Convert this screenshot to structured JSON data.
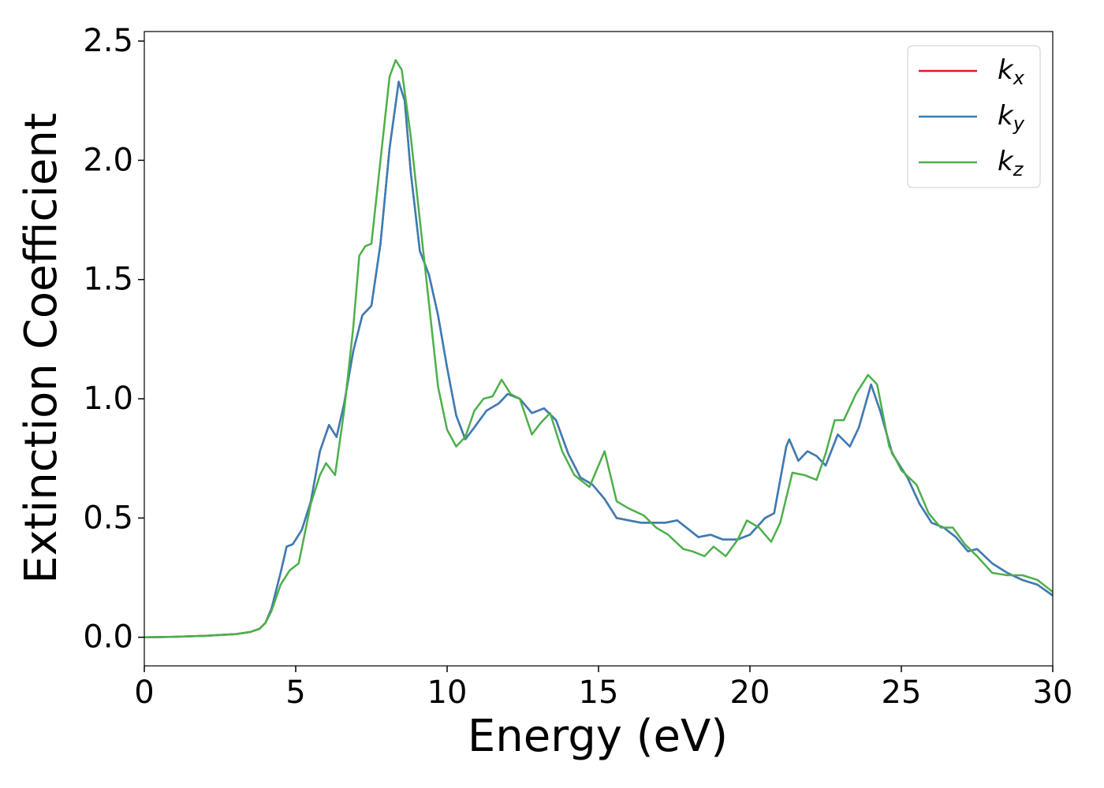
{
  "chart_data": {
    "type": "line",
    "xlabel": "Energy (eV)",
    "ylabel": "Extinction Coefficient",
    "xlim": [
      0,
      30
    ],
    "ylim": [
      -0.12,
      2.54
    ],
    "xticks": [
      0,
      5,
      10,
      15,
      20,
      25,
      30
    ],
    "yticks": [
      {
        "value": 0,
        "label": "0.0"
      },
      0.5,
      {
        "value": 1,
        "label": "1.0"
      },
      1.5,
      {
        "value": 2,
        "label": "2.0"
      },
      2.5
    ],
    "legend": "upper right",
    "series": [
      {
        "name": "kx",
        "color": "#e41a1c",
        "x": [
          0,
          1,
          2,
          3,
          3.5,
          3.8,
          4.0,
          4.2,
          4.5,
          4.7,
          4.9,
          5.2,
          5.5,
          5.8,
          6.1,
          6.35,
          6.6,
          6.9,
          7.2,
          7.5,
          7.8,
          8.1,
          8.4,
          8.6,
          8.8,
          9.1,
          9.4,
          9.7,
          10.0,
          10.3,
          10.6,
          10.9,
          11.3,
          11.7,
          12.0,
          12.4,
          12.8,
          13.2,
          13.6,
          14.0,
          14.4,
          14.8,
          15.2,
          15.6,
          16.0,
          16.4,
          16.8,
          17.2,
          17.6,
          17.9,
          18.3,
          18.7,
          19.1,
          19.6,
          20.0,
          20.5,
          20.8,
          21.2,
          21.3,
          21.6,
          21.9,
          22.2,
          22.5,
          22.9,
          23.3,
          23.6,
          24.0,
          24.3,
          24.7,
          25.2,
          25.6,
          26.0,
          26.4,
          26.8,
          27.2,
          27.5,
          28.0,
          28.5,
          29.0,
          29.5,
          30
        ],
        "values": [
          0,
          0.002,
          0.006,
          0.013,
          0.022,
          0.035,
          0.06,
          0.12,
          0.27,
          0.38,
          0.39,
          0.45,
          0.57,
          0.78,
          0.89,
          0.84,
          0.98,
          1.2,
          1.35,
          1.39,
          1.65,
          2.05,
          2.33,
          2.25,
          1.95,
          1.62,
          1.52,
          1.35,
          1.13,
          0.93,
          0.83,
          0.88,
          0.95,
          0.98,
          1.02,
          1.0,
          0.94,
          0.96,
          0.91,
          0.77,
          0.67,
          0.64,
          0.58,
          0.5,
          0.49,
          0.48,
          0.48,
          0.48,
          0.49,
          0.46,
          0.42,
          0.43,
          0.41,
          0.41,
          0.43,
          0.5,
          0.52,
          0.8,
          0.83,
          0.74,
          0.78,
          0.76,
          0.72,
          0.85,
          0.8,
          0.88,
          1.06,
          0.95,
          0.77,
          0.67,
          0.56,
          0.48,
          0.46,
          0.42,
          0.36,
          0.37,
          0.31,
          0.27,
          0.24,
          0.22,
          0.175
        ]
      },
      {
        "name": "ky",
        "color": "#377eb8",
        "x": [
          0,
          1,
          2,
          3,
          3.5,
          3.8,
          4.0,
          4.2,
          4.5,
          4.7,
          4.9,
          5.2,
          5.5,
          5.8,
          6.1,
          6.35,
          6.6,
          6.9,
          7.2,
          7.5,
          7.8,
          8.1,
          8.4,
          8.6,
          8.8,
          9.1,
          9.4,
          9.7,
          10.0,
          10.3,
          10.6,
          10.9,
          11.3,
          11.7,
          12.0,
          12.4,
          12.8,
          13.2,
          13.6,
          14.0,
          14.4,
          14.8,
          15.2,
          15.6,
          16.0,
          16.4,
          16.8,
          17.2,
          17.6,
          17.9,
          18.3,
          18.7,
          19.1,
          19.6,
          20.0,
          20.5,
          20.8,
          21.2,
          21.3,
          21.6,
          21.9,
          22.2,
          22.5,
          22.9,
          23.3,
          23.6,
          24.0,
          24.3,
          24.7,
          25.2,
          25.6,
          26.0,
          26.4,
          26.8,
          27.2,
          27.5,
          28.0,
          28.5,
          29.0,
          29.5,
          30
        ],
        "values": [
          0,
          0.002,
          0.006,
          0.013,
          0.022,
          0.035,
          0.06,
          0.12,
          0.27,
          0.38,
          0.39,
          0.45,
          0.57,
          0.78,
          0.89,
          0.84,
          0.98,
          1.2,
          1.35,
          1.39,
          1.65,
          2.05,
          2.33,
          2.25,
          1.95,
          1.62,
          1.52,
          1.35,
          1.13,
          0.93,
          0.83,
          0.88,
          0.95,
          0.98,
          1.02,
          1.0,
          0.94,
          0.96,
          0.91,
          0.77,
          0.67,
          0.64,
          0.58,
          0.5,
          0.49,
          0.48,
          0.48,
          0.48,
          0.49,
          0.46,
          0.42,
          0.43,
          0.41,
          0.41,
          0.43,
          0.5,
          0.52,
          0.8,
          0.83,
          0.74,
          0.78,
          0.76,
          0.72,
          0.85,
          0.8,
          0.88,
          1.06,
          0.95,
          0.77,
          0.67,
          0.56,
          0.48,
          0.46,
          0.42,
          0.36,
          0.37,
          0.31,
          0.27,
          0.24,
          0.22,
          0.175
        ]
      },
      {
        "name": "kz",
        "color": "#4daf4a",
        "x": [
          0,
          1,
          2,
          3,
          3.5,
          3.8,
          4.0,
          4.2,
          4.5,
          4.8,
          5.1,
          5.5,
          5.8,
          6.0,
          6.3,
          6.6,
          6.9,
          7.1,
          7.3,
          7.5,
          7.8,
          8.1,
          8.3,
          8.5,
          8.8,
          9.1,
          9.4,
          9.7,
          10.0,
          10.3,
          10.6,
          10.9,
          11.2,
          11.5,
          11.8,
          12.1,
          12.4,
          12.8,
          13.1,
          13.4,
          13.8,
          14.2,
          14.7,
          15.2,
          15.6,
          16.0,
          16.5,
          16.9,
          17.3,
          17.8,
          18.1,
          18.5,
          18.8,
          19.2,
          19.6,
          19.9,
          20.3,
          20.7,
          21.0,
          21.4,
          21.8,
          22.2,
          22.5,
          22.8,
          23.1,
          23.5,
          23.9,
          24.2,
          24.6,
          25.0,
          25.5,
          25.9,
          26.3,
          26.7,
          27.1,
          27.5,
          28.0,
          28.5,
          29.0,
          29.5,
          30
        ],
        "values": [
          0,
          0.002,
          0.006,
          0.013,
          0.022,
          0.035,
          0.06,
          0.11,
          0.22,
          0.28,
          0.31,
          0.56,
          0.68,
          0.73,
          0.68,
          0.95,
          1.3,
          1.6,
          1.64,
          1.65,
          2.0,
          2.35,
          2.42,
          2.38,
          2.1,
          1.75,
          1.4,
          1.05,
          0.87,
          0.8,
          0.84,
          0.95,
          1.0,
          1.01,
          1.08,
          1.02,
          1.0,
          0.85,
          0.9,
          0.94,
          0.78,
          0.68,
          0.63,
          0.78,
          0.57,
          0.54,
          0.51,
          0.46,
          0.43,
          0.37,
          0.36,
          0.34,
          0.38,
          0.34,
          0.41,
          0.49,
          0.46,
          0.4,
          0.48,
          0.69,
          0.68,
          0.66,
          0.77,
          0.91,
          0.91,
          1.02,
          1.1,
          1.06,
          0.8,
          0.7,
          0.64,
          0.52,
          0.46,
          0.46,
          0.39,
          0.34,
          0.27,
          0.26,
          0.26,
          0.24,
          0.19
        ]
      }
    ]
  }
}
